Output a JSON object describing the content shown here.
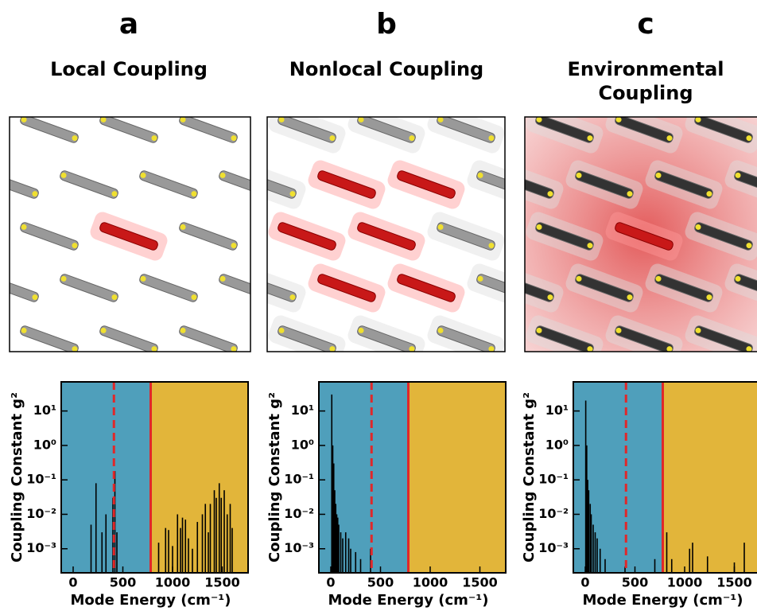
{
  "chart_data": [
    {
      "type": "bar",
      "panel_label": "a",
      "title": "Local Coupling",
      "x_label": "Mode Energy (cm⁻¹)",
      "y_label": "Coupling Constant g²",
      "xlim": [
        -120,
        1760
      ],
      "ylim": [
        0.0002,
        70
      ],
      "log_y": true,
      "xticks": [
        0,
        500,
        1000,
        1500
      ],
      "yticks": [
        {
          "value": 0.001,
          "label": "10⁻³"
        },
        {
          "value": 0.01,
          "label": "10⁻²"
        },
        {
          "value": 0.1,
          "label": "10⁻¹"
        },
        {
          "value": 1,
          "label": "10⁰"
        },
        {
          "value": 10,
          "label": "10¹"
        }
      ],
      "dashed_line_x": 410,
      "solid_line_x": 780,
      "low_region_color": "#4f9fbb",
      "high_region_color": "#e2b53a",
      "line_color": "#e0282a",
      "color": "#000000",
      "x": [
        180,
        230,
        290,
        330,
        400,
        420,
        440,
        860,
        930,
        960,
        1000,
        1050,
        1080,
        1100,
        1130,
        1160,
        1200,
        1250,
        1300,
        1330,
        1360,
        1380,
        1420,
        1440,
        1470,
        1490,
        1520,
        1550,
        1580,
        1600
      ],
      "values": [
        0.005,
        0.08,
        0.003,
        0.01,
        0.03,
        0.18,
        0.003,
        0.0015,
        0.004,
        0.0035,
        0.0012,
        0.01,
        0.004,
        0.008,
        0.007,
        0.002,
        0.001,
        0.006,
        0.01,
        0.02,
        0.003,
        0.02,
        0.05,
        0.03,
        0.08,
        0.03,
        0.05,
        0.01,
        0.02,
        0.004
      ]
    },
    {
      "type": "bar",
      "panel_label": "b",
      "title": "Nonlocal Coupling",
      "x_label": "Mode Energy (cm⁻¹)",
      "y_label": "Coupling Constant g²",
      "xlim": [
        -120,
        1760
      ],
      "ylim": [
        0.0002,
        70
      ],
      "log_y": true,
      "xticks": [
        0,
        500,
        1000,
        1500
      ],
      "yticks": [
        {
          "value": 0.001,
          "label": "10⁻³"
        },
        {
          "value": 0.01,
          "label": "10⁻²"
        },
        {
          "value": 0.1,
          "label": "10⁻¹"
        },
        {
          "value": 1,
          "label": "10⁰"
        },
        {
          "value": 10,
          "label": "10¹"
        }
      ],
      "dashed_line_x": 410,
      "solid_line_x": 780,
      "low_region_color": "#4f9fbb",
      "high_region_color": "#e2b53a",
      "line_color": "#e0282a",
      "color": "#000000",
      "x": [
        10,
        20,
        30,
        40,
        50,
        60,
        70,
        80,
        100,
        120,
        150,
        180,
        200,
        250,
        300,
        400
      ],
      "values": [
        30,
        1,
        0.3,
        0.05,
        0.02,
        0.01,
        0.008,
        0.005,
        0.003,
        0.002,
        0.003,
        0.002,
        0.001,
        0.0008,
        0.0005,
        0.001
      ]
    },
    {
      "type": "bar",
      "panel_label": "c",
      "title": "Environmental Coupling",
      "x_label": "Mode Energy (cm⁻¹)",
      "y_label": "Coupling Constant g²",
      "xlim": [
        -120,
        1760
      ],
      "ylim": [
        0.0002,
        70
      ],
      "log_y": true,
      "xticks": [
        0,
        500,
        1000,
        1500
      ],
      "yticks": [
        {
          "value": 0.001,
          "label": "10⁻³"
        },
        {
          "value": 0.01,
          "label": "10⁻²"
        },
        {
          "value": 0.1,
          "label": "10⁻¹"
        },
        {
          "value": 1,
          "label": "10⁰"
        },
        {
          "value": 10,
          "label": "10¹"
        }
      ],
      "dashed_line_x": 410,
      "solid_line_x": 780,
      "low_region_color": "#4f9fbb",
      "high_region_color": "#e2b53a",
      "line_color": "#e0282a",
      "color": "#000000",
      "x": [
        5,
        15,
        25,
        35,
        50,
        60,
        80,
        100,
        120,
        150,
        200,
        400,
        700,
        820,
        870,
        1050,
        1080,
        1230,
        1500,
        1600
      ],
      "values": [
        20,
        1,
        0.1,
        0.05,
        0.02,
        0.01,
        0.005,
        0.003,
        0.002,
        0.001,
        0.0005,
        0.0003,
        0.0005,
        0.003,
        0.0005,
        0.001,
        0.0015,
        0.0006,
        0.0004,
        0.0015
      ]
    }
  ]
}
